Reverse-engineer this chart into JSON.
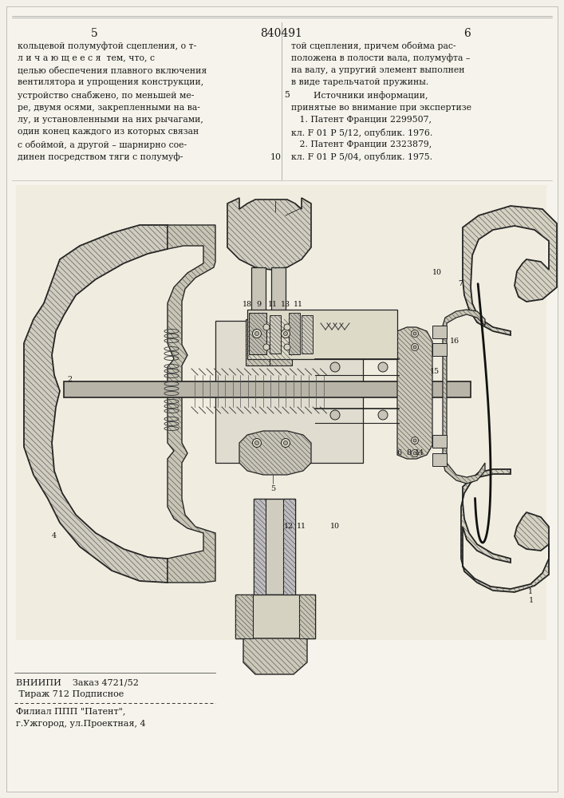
{
  "page_number_left": "5",
  "page_number_center": "840491",
  "page_number_right": "6",
  "col_left_text": [
    "кольцевой полумуфтой сцепления, о т-",
    "л и ч а ю щ е е с я  тем, что, с",
    "целью обеспечения плавного включения",
    "вентилятора и упрощения конструкции,",
    "устройство снабжено, по меньшей ме-",
    "ре, двумя осями, закрепленными на ва-",
    "лу, и установленными на них рычагами,",
    "один конец каждого из которых связан",
    "с обоймой, а другой – шарнирно сое-",
    "динен посредством тяги с полумуф-"
  ],
  "col_right_text": [
    "той сцепления, причем обойма рас-",
    "положена в полости вала, полумуфта –",
    "на валу, а упругий элемент выполнен",
    "в виде тарельчатой пружины.",
    "        Источники информации,",
    "принятые во внимание при экспертизе",
    "   1. Патент Франции 2299507,",
    "кл. F 01 P 5/12, опублик. 1976.",
    "   2. Патент Франции 2323879,",
    "кл. F 01 P 5/04, опублик. 1975."
  ],
  "bottom_left_line1": "ВНИИПИ    Заказ 4721/52",
  "bottom_left_line2": " Тираж 712 Подписное",
  "bottom_left_line3": "Филиал ППП \"Патент\",",
  "bottom_left_line4": "г.Ужгород, ул.Проектная, 4",
  "bg_color": "#f2f0e8",
  "text_color": "#1a1a1a",
  "hatch_color": "#444444",
  "line_color": "#222222"
}
